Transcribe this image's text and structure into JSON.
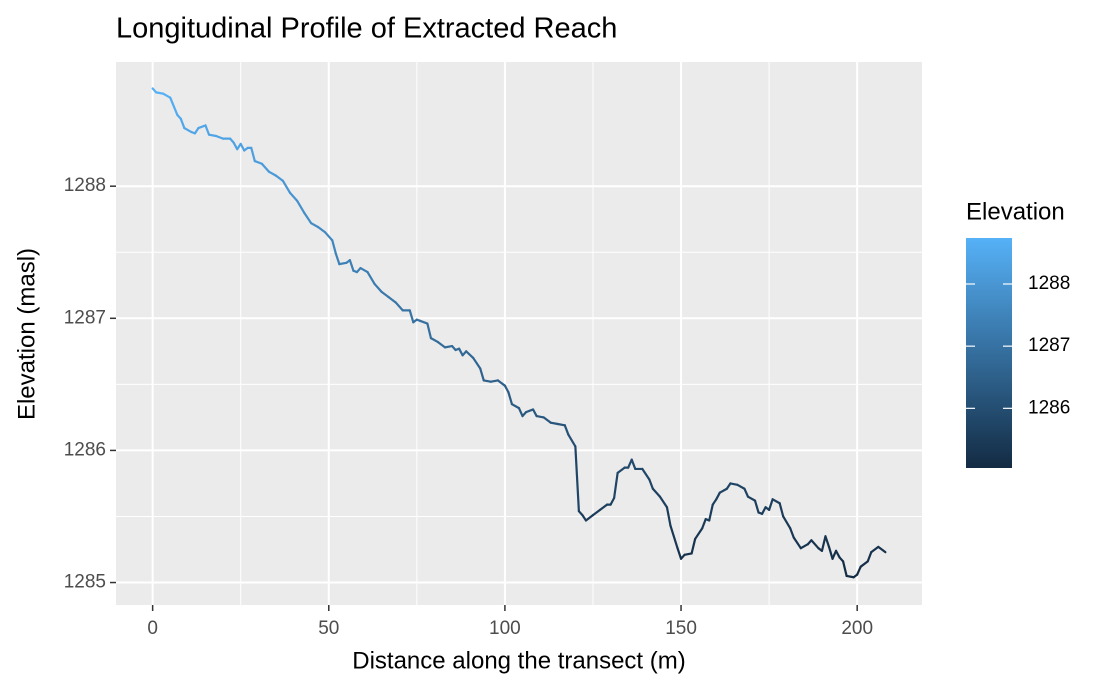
{
  "chart_data": {
    "type": "line",
    "title": "Longitudinal Profile of Extracted Reach",
    "x_label": "Distance along the transect (m)",
    "y_label": "Elevation (masl)",
    "x": [
      0,
      1,
      3,
      5,
      7,
      8,
      9,
      11,
      12,
      13,
      15,
      16,
      18,
      20,
      22,
      23,
      24,
      25,
      26,
      27,
      28,
      29,
      31,
      33,
      35,
      37,
      39,
      41,
      43,
      45,
      47,
      49,
      51,
      52,
      53,
      55,
      56,
      57,
      58,
      59,
      61,
      63,
      65,
      67,
      69,
      71,
      73,
      74,
      75,
      76,
      78,
      79,
      81,
      83,
      85,
      86,
      87,
      88,
      89,
      91,
      93,
      94,
      96,
      98,
      100,
      101,
      102,
      104,
      105,
      106,
      108,
      109,
      111,
      113,
      115,
      117,
      118,
      120,
      121,
      122,
      123,
      125,
      127,
      129,
      130,
      131,
      132,
      134,
      135,
      136,
      137,
      139,
      141,
      142,
      144,
      146,
      147,
      149,
      150,
      151,
      153,
      154,
      156,
      157,
      158,
      159,
      160,
      161,
      163,
      164,
      166,
      168,
      169,
      171,
      172,
      173,
      174,
      175,
      176,
      178,
      179,
      181,
      182,
      184,
      186,
      187,
      189,
      190,
      191,
      192,
      193,
      194,
      195,
      196,
      197,
      199,
      200,
      201,
      203,
      204,
      206,
      208
    ],
    "values": [
      1288.74,
      1288.71,
      1288.7,
      1288.67,
      1288.54,
      1288.51,
      1288.44,
      1288.41,
      1288.4,
      1288.44,
      1288.46,
      1288.39,
      1288.38,
      1288.36,
      1288.36,
      1288.33,
      1288.28,
      1288.32,
      1288.27,
      1288.29,
      1288.29,
      1288.19,
      1288.17,
      1288.11,
      1288.08,
      1288.04,
      1287.95,
      1287.89,
      1287.8,
      1287.72,
      1287.69,
      1287.65,
      1287.59,
      1287.49,
      1287.41,
      1287.42,
      1287.44,
      1287.36,
      1287.35,
      1287.38,
      1287.35,
      1287.26,
      1287.2,
      1287.16,
      1287.12,
      1287.06,
      1287.06,
      1286.97,
      1286.99,
      1286.98,
      1286.96,
      1286.85,
      1286.82,
      1286.78,
      1286.79,
      1286.76,
      1286.77,
      1286.72,
      1286.75,
      1286.7,
      1286.62,
      1286.53,
      1286.52,
      1286.53,
      1286.49,
      1286.44,
      1286.35,
      1286.32,
      1286.26,
      1286.29,
      1286.31,
      1286.26,
      1286.25,
      1286.21,
      1286.2,
      1286.19,
      1286.12,
      1286.03,
      1285.54,
      1285.51,
      1285.47,
      1285.51,
      1285.55,
      1285.59,
      1285.59,
      1285.64,
      1285.83,
      1285.87,
      1285.87,
      1285.93,
      1285.86,
      1285.86,
      1285.78,
      1285.71,
      1285.65,
      1285.57,
      1285.43,
      1285.26,
      1285.18,
      1285.21,
      1285.22,
      1285.33,
      1285.41,
      1285.48,
      1285.47,
      1285.59,
      1285.63,
      1285.68,
      1285.71,
      1285.75,
      1285.74,
      1285.71,
      1285.65,
      1285.62,
      1285.53,
      1285.52,
      1285.57,
      1285.55,
      1285.63,
      1285.6,
      1285.5,
      1285.41,
      1285.34,
      1285.26,
      1285.29,
      1285.32,
      1285.26,
      1285.24,
      1285.35,
      1285.27,
      1285.18,
      1285.24,
      1285.19,
      1285.16,
      1285.05,
      1285.04,
      1285.06,
      1285.12,
      1285.16,
      1285.23,
      1285.27,
      1285.23
    ],
    "xlim": [
      -10.4,
      218.4
    ],
    "xticks": [
      0,
      50,
      100,
      150,
      200
    ],
    "xminor": [
      25,
      75,
      125,
      175
    ],
    "ylim": [
      1284.83,
      1288.94
    ],
    "yticks": [
      1285,
      1286,
      1287,
      1288
    ],
    "yminor": [
      1285.5,
      1286.5,
      1287.5
    ],
    "grid": true,
    "color_scale": {
      "title": "Elevation",
      "low": "#132B43",
      "high": "#56B1F7",
      "ticks": [
        1286,
        1287,
        1288
      ]
    }
  }
}
